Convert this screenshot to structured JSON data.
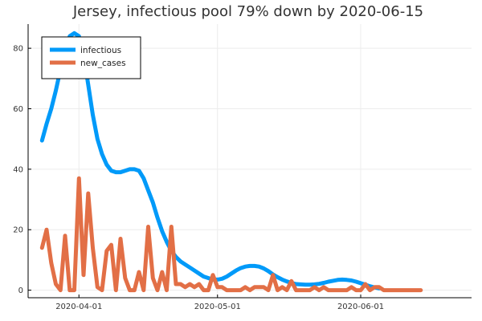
{
  "chart_data": {
    "type": "line",
    "title": "Jersey, infectious pool 79% down by 2020-06-15",
    "xlabel": "",
    "ylabel": "",
    "x_start": "2020-03-24",
    "xlim": [
      "2020-03-21",
      "2020-06-25"
    ],
    "ylim": [
      -2.5,
      88
    ],
    "x_ticks": [
      {
        "date": "2020-04-01",
        "label": "2020-04-01"
      },
      {
        "date": "2020-05-01",
        "label": "2020-05-01"
      },
      {
        "date": "2020-06-01",
        "label": "2020-06-01"
      }
    ],
    "y_ticks": [
      0,
      20,
      40,
      60,
      80
    ],
    "grid": true,
    "legend_position": "top-left",
    "series": [
      {
        "name": "infectious",
        "color": "#009af9",
        "values": [
          49.5,
          55,
          60,
          66,
          73,
          79,
          84,
          85,
          84,
          78,
          68,
          58,
          50,
          45,
          41.5,
          39.5,
          39,
          39,
          39.5,
          40,
          40,
          39.5,
          37,
          33,
          29,
          24,
          19.5,
          16,
          13,
          11,
          9.5,
          8.5,
          7.5,
          6.5,
          5.5,
          4.5,
          4,
          3.5,
          3.5,
          3.8,
          4.5,
          5.5,
          6.5,
          7.3,
          7.8,
          8,
          8,
          7.8,
          7.2,
          6.3,
          5.2,
          4.3,
          3.5,
          2.9,
          2.4,
          2,
          1.9,
          1.8,
          1.8,
          1.9,
          2.1,
          2.4,
          2.8,
          3.1,
          3.4,
          3.5,
          3.4,
          3.2,
          2.8,
          2.3,
          1.8,
          1.3,
          0.9,
          0.6
        ]
      },
      {
        "name": "new_cases",
        "color": "#e26f46",
        "values": [
          14,
          20,
          9,
          2,
          0,
          18,
          0,
          0,
          37,
          5,
          32,
          14,
          1,
          0,
          13,
          15,
          0,
          17,
          4,
          0,
          0,
          6,
          0,
          21,
          4,
          0,
          6,
          0,
          21,
          2,
          2,
          1,
          2,
          1,
          2,
          0,
          0,
          5,
          1,
          1,
          0,
          0,
          0,
          0,
          1,
          0,
          1,
          1,
          1,
          0,
          5,
          0,
          1,
          0,
          3,
          0,
          0,
          0,
          0,
          1,
          0,
          1,
          0,
          0,
          0,
          0,
          0,
          1,
          0,
          0,
          2,
          0,
          1,
          1,
          0,
          0,
          0,
          0,
          0,
          0,
          0,
          0,
          0
        ]
      }
    ]
  }
}
